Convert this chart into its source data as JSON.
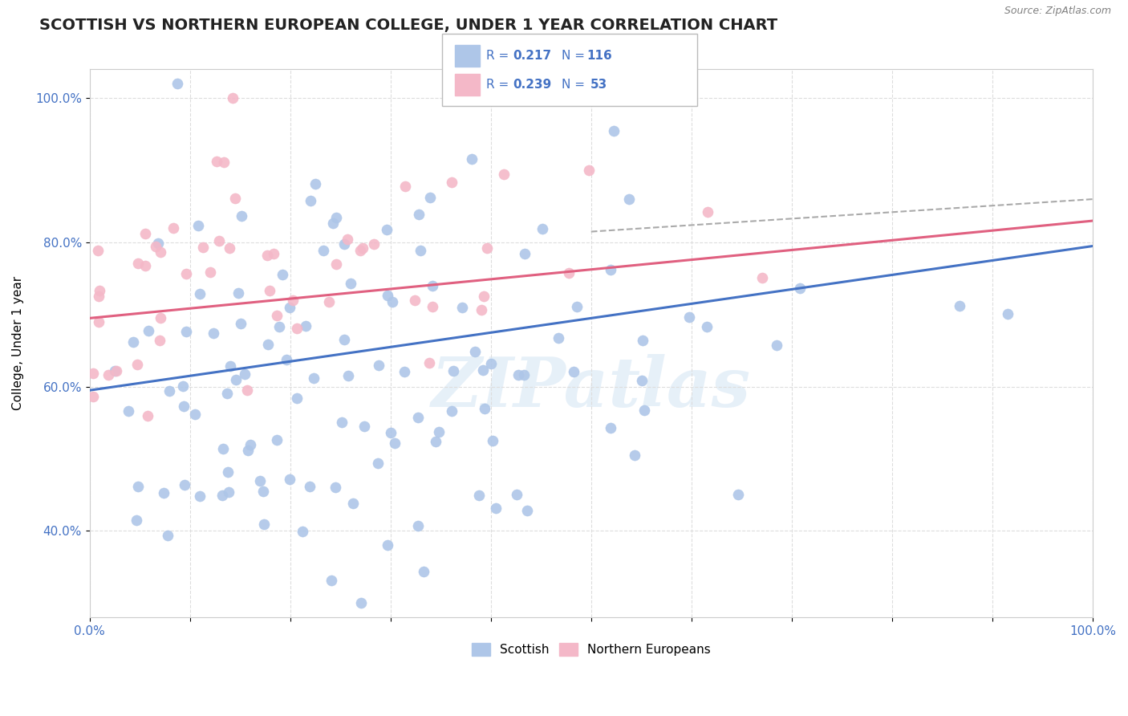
{
  "title": "SCOTTISH VS NORTHERN EUROPEAN COLLEGE, UNDER 1 YEAR CORRELATION CHART",
  "source": "Source: ZipAtlas.com",
  "ylabel": "College, Under 1 year",
  "xlim": [
    0.0,
    1.0
  ],
  "ylim": [
    0.28,
    1.04
  ],
  "ytick_positions": [
    0.4,
    0.6,
    0.8,
    1.0
  ],
  "ytick_labels": [
    "40.0%",
    "60.0%",
    "80.0%",
    "100.0%"
  ],
  "xtick_positions": [
    0.0,
    0.1,
    0.2,
    0.3,
    0.4,
    0.5,
    0.6,
    0.7,
    0.8,
    0.9,
    1.0
  ],
  "xtick_labels": [
    "0.0%",
    "",
    "",
    "",
    "",
    "",
    "",
    "",
    "",
    "",
    "100.0%"
  ],
  "watermark": "ZIPatlas",
  "background_color": "#ffffff",
  "grid_color": "#dddddd",
  "scatter_blue_color": "#aec6e8",
  "scatter_pink_color": "#f4b8c8",
  "line_blue_color": "#4472c4",
  "line_pink_color": "#e06080",
  "line_gray_color": "#aaaaaa",
  "title_color": "#222222",
  "title_fontsize": 14,
  "axis_tick_color": "#4472c4",
  "legend_R_color": "#4472c4",
  "seed": 42,
  "blue_R": 0.217,
  "blue_N": 116,
  "pink_R": 0.239,
  "pink_N": 53,
  "blue_line_x0": 0.0,
  "blue_line_y0": 0.595,
  "blue_line_x1": 1.0,
  "blue_line_y1": 0.795,
  "pink_line_x0": 0.0,
  "pink_line_y0": 0.695,
  "pink_line_x1": 1.0,
  "pink_line_y1": 0.83,
  "gray_line_x0": 0.5,
  "gray_line_y0": 0.815,
  "gray_line_x1": 1.0,
  "gray_line_y1": 0.86
}
